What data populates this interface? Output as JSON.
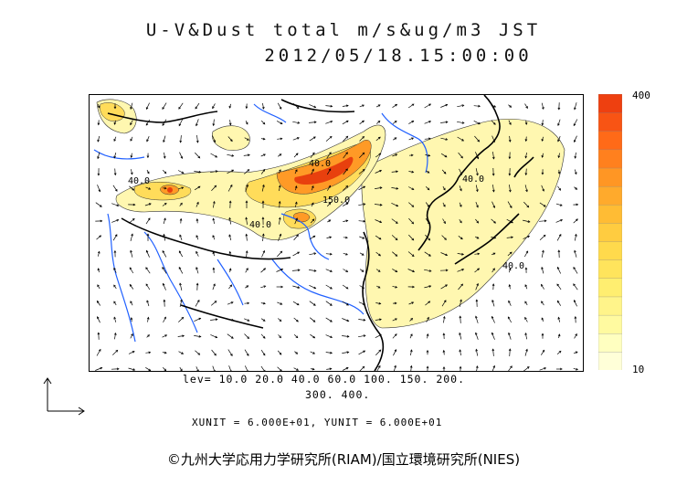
{
  "title": {
    "line1": "U-V&Dust total m/s&ug/m3 JST",
    "line2": "2012/05/18.15:00:00"
  },
  "legend": {
    "levels_line1": "lev= 10.0 20.0 40.0 60.0 100. 150. 200.",
    "levels_line2": "300. 400.",
    "units": "XUNIT = 6.000E+01, YUNIT = 6.000E+01",
    "colorbar_max": "400",
    "colorbar_min": "10",
    "colorbar_colors": [
      "#ffffd8",
      "#ffffc0",
      "#fffaa0",
      "#fff48a",
      "#ffee70",
      "#ffe45c",
      "#ffda4c",
      "#ffcc40",
      "#ffbc34",
      "#ffaa2c",
      "#ff9624",
      "#ff801e",
      "#ff6a18",
      "#f85414",
      "#ee4010"
    ]
  },
  "contour_labels": [
    "40.0",
    "40.0",
    "40.0",
    "40.0",
    "40.0",
    "150.0"
  ],
  "copyright": "©九州大学応用力学研究所(RIAM)/国立環境研究所(NIES)",
  "colors": {
    "dust_low": "#fff7b0",
    "dust_mid": "#ffd84a",
    "dust_high": "#ff8a1e",
    "dust_peak": "#e8400e",
    "river": "#2060ff",
    "coast": "#000000"
  }
}
